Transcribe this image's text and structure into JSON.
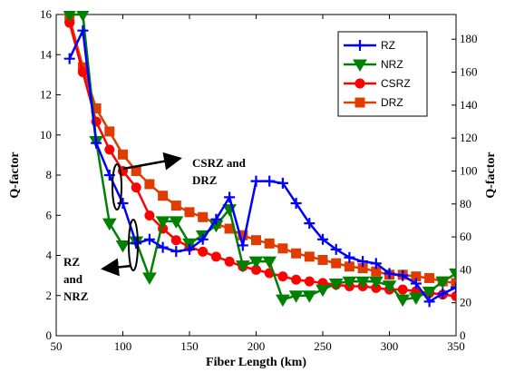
{
  "chart_data": {
    "type": "line",
    "xlabel": "Fiber Length (km)",
    "ylabel_left": "Q-factor",
    "ylabel_right": "Q-factor",
    "xlim": [
      50,
      350
    ],
    "ylim_left": [
      0,
      16
    ],
    "ylim_right": [
      0,
      195
    ],
    "x_ticks": [
      50,
      100,
      150,
      200,
      250,
      300,
      350
    ],
    "y_ticks_left": [
      0,
      2,
      4,
      6,
      8,
      10,
      12,
      14,
      16
    ],
    "y_ticks_right": [
      0,
      20,
      40,
      60,
      80,
      100,
      120,
      140,
      160,
      180
    ],
    "grid": false,
    "legend_position": "top-right",
    "series": [
      {
        "name": "RZ",
        "color": "#0000ff",
        "marker": "plus",
        "axis": "left",
        "x": [
          60,
          70,
          80,
          90,
          100,
          110,
          120,
          130,
          140,
          150,
          160,
          170,
          180,
          190,
          200,
          210,
          220,
          230,
          240,
          250,
          260,
          270,
          280,
          290,
          300,
          310,
          320,
          330,
          340,
          350
        ],
        "y": [
          13.8,
          15.2,
          9.6,
          8.0,
          6.6,
          4.6,
          4.8,
          4.4,
          4.2,
          4.3,
          4.8,
          5.8,
          6.9,
          4.5,
          7.7,
          7.7,
          7.6,
          6.6,
          5.6,
          4.8,
          4.3,
          3.9,
          3.7,
          3.6,
          3.1,
          3.0,
          2.6,
          1.7,
          2.1,
          2.4
        ]
      },
      {
        "name": "NRZ",
        "color": "#008000",
        "marker": "triangle-down",
        "axis": "left",
        "x": [
          60,
          70,
          80,
          90,
          100,
          110,
          120,
          130,
          140,
          150,
          160,
          170,
          180,
          190,
          200,
          210,
          220,
          230,
          240,
          250,
          260,
          270,
          280,
          290,
          300,
          310,
          320,
          330,
          340,
          350
        ],
        "y": [
          16.0,
          16.0,
          9.7,
          5.6,
          4.5,
          4.7,
          2.9,
          5.7,
          5.7,
          4.6,
          5.0,
          5.5,
          6.3,
          3.5,
          3.7,
          3.7,
          1.8,
          2.0,
          2.0,
          2.3,
          2.6,
          2.7,
          2.7,
          2.7,
          2.5,
          1.8,
          1.9,
          2.2,
          2.7,
          3.1
        ]
      },
      {
        "name": "CSRZ",
        "color": "#ff0000",
        "marker": "circle",
        "axis": "right",
        "x": [
          60,
          70,
          80,
          90,
          100,
          110,
          120,
          130,
          140,
          150,
          160,
          170,
          180,
          190,
          200,
          210,
          220,
          230,
          240,
          250,
          260,
          270,
          280,
          290,
          300,
          310,
          320,
          330,
          340,
          350
        ],
        "y": [
          190,
          160,
          130,
          113,
          100,
          90,
          73,
          65,
          58,
          54,
          51,
          48,
          45,
          42,
          40,
          38,
          36,
          34,
          33,
          32,
          31,
          30,
          30,
          29,
          28,
          28,
          27,
          26,
          25,
          24
        ]
      },
      {
        "name": "DRZ",
        "color": "#e03c00",
        "marker": "square",
        "axis": "right",
        "x": [
          60,
          70,
          80,
          90,
          100,
          110,
          120,
          130,
          140,
          150,
          160,
          170,
          180,
          190,
          200,
          210,
          220,
          230,
          240,
          250,
          260,
          270,
          280,
          290,
          300,
          310,
          320,
          330,
          340,
          350
        ],
        "y": [
          193,
          163,
          138,
          124,
          110,
          100,
          92,
          85,
          79,
          75,
          72,
          68,
          65,
          61,
          58,
          56,
          53,
          50,
          48,
          46,
          44,
          42,
          41,
          39,
          37,
          37,
          36,
          35,
          33,
          32
        ]
      }
    ],
    "annotations": [
      {
        "lines": [
          "CSRZ and",
          "DRZ"
        ]
      },
      {
        "lines": [
          "RZ",
          "and",
          "NRZ"
        ]
      }
    ]
  }
}
